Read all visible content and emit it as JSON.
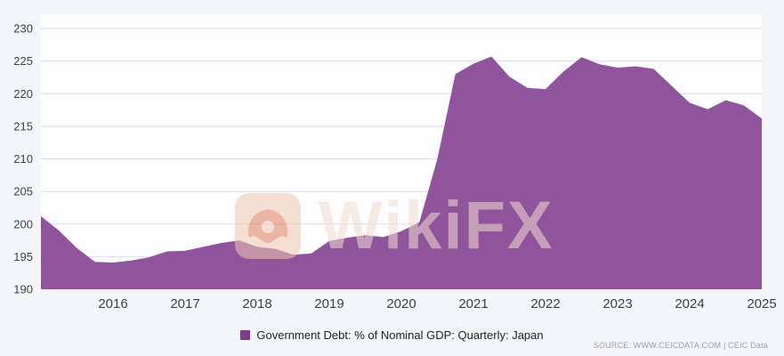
{
  "watermark": {
    "text": "WikiFX"
  },
  "legend": {
    "label": "Government Debt: % of Nominal GDP: Quarterly: Japan",
    "swatch_color": "#7d3c8d"
  },
  "source": {
    "text": "SOURCE: WWW.CEICDATA.COM | CEIC Data"
  },
  "chart_data": {
    "type": "area",
    "series_name": "Government Debt: % of Nominal GDP: Quarterly: Japan",
    "x": [
      2015.0,
      2015.25,
      2015.5,
      2015.75,
      2016.0,
      2016.25,
      2016.5,
      2016.75,
      2017.0,
      2017.25,
      2017.5,
      2017.75,
      2018.0,
      2018.25,
      2018.5,
      2018.75,
      2019.0,
      2019.25,
      2019.5,
      2019.75,
      2020.0,
      2020.25,
      2020.5,
      2020.75,
      2021.0,
      2021.25,
      2021.5,
      2021.75,
      2022.0,
      2022.25,
      2022.5,
      2022.75,
      2023.0,
      2023.25,
      2023.5,
      2023.75,
      2024.0,
      2024.25,
      2024.5,
      2024.75,
      2025.0
    ],
    "values": [
      201.2,
      199.0,
      196.3,
      194.2,
      194.1,
      194.4,
      194.9,
      195.8,
      195.9,
      196.5,
      197.1,
      197.5,
      196.5,
      196.2,
      195.3,
      195.5,
      197.4,
      197.9,
      198.3,
      198.0,
      198.9,
      200.3,
      210.0,
      223.0,
      224.6,
      225.7,
      222.6,
      220.9,
      220.7,
      223.4,
      225.6,
      224.5,
      224.0,
      224.2,
      223.8,
      221.2,
      218.6,
      217.6,
      219.0,
      218.2,
      216.2
    ],
    "xticks": [
      2016,
      2017,
      2018,
      2019,
      2020,
      2021,
      2022,
      2023,
      2024,
      2025
    ],
    "yticks": [
      190,
      195,
      200,
      205,
      210,
      215,
      220,
      225,
      230
    ],
    "xlim": [
      2015,
      2025
    ],
    "ylim": [
      190,
      230
    ],
    "grid": true,
    "legend_position": "bottom",
    "colors": {
      "fill": "#90549c",
      "grid": "#dcdde4",
      "plot_bg": "#fdfdff",
      "tick_text": "#3f3f3f"
    }
  }
}
